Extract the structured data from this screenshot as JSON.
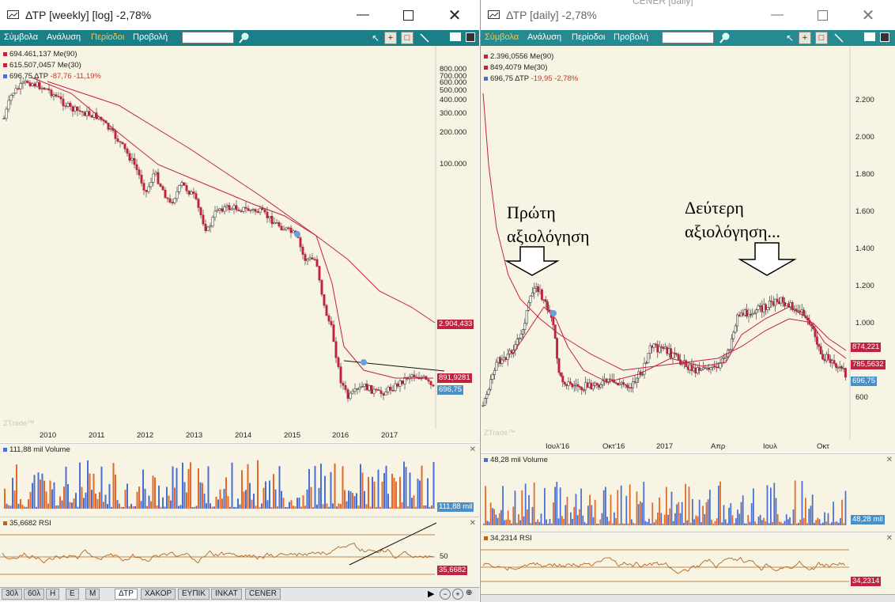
{
  "left": {
    "title": "ΔΤΡ [weekly] [log] -2,78%",
    "menu": [
      "Σύμβολα",
      "Ανάλυση",
      "Περίοδοι",
      "Προβολή"
    ],
    "legend": [
      {
        "text": "694.461,137 Me(90)",
        "color": "#c0223f"
      },
      {
        "text": "615.507,0457 Me(30)",
        "color": "#c0223f"
      },
      {
        "text": "696,75 ΔΤΡ",
        "change": "-87,76 -11,19%",
        "color": "#4a6fd1"
      }
    ],
    "y_ticks": [
      "800.000",
      "700.000",
      "600.000",
      "500.000",
      "400.000",
      "300.000",
      "200.000",
      "100.000"
    ],
    "x_ticks": [
      "2010",
      "2011",
      "2012",
      "2013",
      "2014",
      "2015",
      "2016",
      "2017"
    ],
    "tags": [
      {
        "text": "2.904,433",
        "color": "#c0223f"
      },
      {
        "text": "891,9281",
        "color": "#c0223f"
      },
      {
        "text": "696,75",
        "color": "#4a90c8"
      }
    ],
    "watermark": "ZTrade™",
    "volume": {
      "label": "111,88 mil Volume",
      "tag": "111,88 mil"
    },
    "rsi": {
      "label": "35,6682 RSI",
      "level": "50",
      "tag": "35,6682"
    },
    "tabs": [
      "30λ",
      "60λ",
      "Η",
      "Ε",
      "Μ",
      "ΔΤΡ",
      "ΧΑΚΟΡ",
      "ΕΥΠΙΚ",
      "ΙΝΚΑΤ",
      "CENER"
    ],
    "active_tab": "ΔΤΡ"
  },
  "right": {
    "title": "ΔΤΡ [daily] -2,78%",
    "ghost_title": "CENER [daily]",
    "menu": [
      "Σύμβολα",
      "Ανάλυση",
      "Περίοδοι",
      "Προβολή"
    ],
    "legend": [
      {
        "text": "2.396,0556 Me(90)",
        "color": "#c0223f"
      },
      {
        "text": "849,4079 Me(30)",
        "color": "#c0223f"
      },
      {
        "text": "696,75 ΔΤΡ",
        "change": "-19,95 -2,78%",
        "color": "#4a6fd1"
      }
    ],
    "y_ticks": [
      "2.200",
      "2.000",
      "1.800",
      "1.600",
      "1.400",
      "1.200",
      "1.000",
      "600"
    ],
    "x_ticks": [
      "Ιουλ'16",
      "Οκτ'16",
      "2017",
      "Απρ",
      "Ιουλ",
      "Οκτ"
    ],
    "tags": [
      {
        "text": "874,221",
        "color": "#c0223f"
      },
      {
        "text": "785,5632",
        "color": "#c0223f"
      },
      {
        "text": "696,75",
        "color": "#4a90c8"
      }
    ],
    "watermark": "ZTrade™",
    "annotations": [
      {
        "line1": "Πρώτη",
        "line2": "αξιολόγηση"
      },
      {
        "line1": "Δεύτερη",
        "line2": "αξιολόγηση..."
      }
    ],
    "volume": {
      "label": "48,28 mil Volume",
      "tag": "48,28 mil"
    },
    "rsi": {
      "label": "34,2314 RSI",
      "tag": "34,2314"
    }
  },
  "colors": {
    "teal": "#1a7f86",
    "bg": "#f8f4e3",
    "candle": "#c0223f",
    "ma": "#c0223f",
    "rsi": "#b5651d",
    "vol_orange": "#e2692a",
    "vol_blue": "#4a6fd1"
  }
}
